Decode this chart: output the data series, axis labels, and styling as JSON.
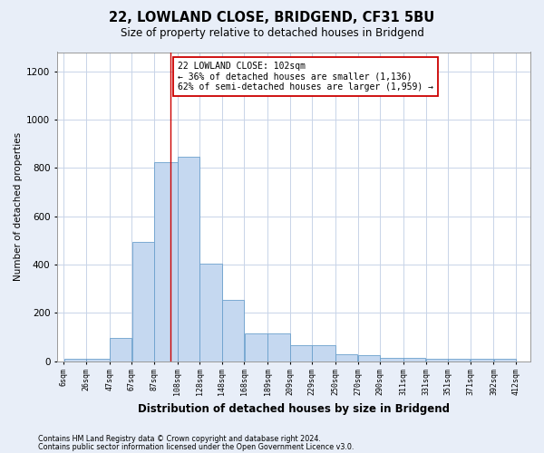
{
  "title1": "22, LOWLAND CLOSE, BRIDGEND, CF31 5BU",
  "title2": "Size of property relative to detached houses in Bridgend",
  "xlabel": "Distribution of detached houses by size in Bridgend",
  "ylabel": "Number of detached properties",
  "bar_left_edges": [
    6,
    26,
    47,
    67,
    87,
    108,
    128,
    148,
    168,
    189,
    209,
    229,
    250,
    270,
    290,
    311,
    331,
    351,
    371,
    392
  ],
  "bar_widths": [
    20,
    21,
    20,
    20,
    21,
    20,
    20,
    20,
    21,
    20,
    20,
    21,
    20,
    20,
    21,
    20,
    20,
    20,
    21,
    20
  ],
  "bar_heights": [
    10,
    10,
    95,
    495,
    825,
    845,
    405,
    255,
    115,
    115,
    65,
    65,
    30,
    25,
    15,
    15,
    10,
    10,
    10,
    10
  ],
  "bar_color": "#c5d8f0",
  "bar_edge_color": "#6ba0cc",
  "vline_x": 102,
  "vline_color": "#cc0000",
  "annotation_line1": "22 LOWLAND CLOSE: 102sqm",
  "annotation_line2": "← 36% of detached houses are smaller (1,136)",
  "annotation_line3": "62% of semi-detached houses are larger (1,959) →",
  "annotation_box_color": "#ffffff",
  "annotation_border_color": "#cc0000",
  "ylim": [
    0,
    1280
  ],
  "xlim": [
    0,
    425
  ],
  "tick_labels": [
    "6sqm",
    "26sqm",
    "47sqm",
    "67sqm",
    "87sqm",
    "108sqm",
    "128sqm",
    "148sqm",
    "168sqm",
    "189sqm",
    "209sqm",
    "229sqm",
    "250sqm",
    "270sqm",
    "290sqm",
    "311sqm",
    "331sqm",
    "351sqm",
    "371sqm",
    "392sqm",
    "412sqm"
  ],
  "tick_positions": [
    6,
    26,
    47,
    67,
    87,
    108,
    128,
    148,
    168,
    189,
    209,
    229,
    250,
    270,
    290,
    311,
    331,
    351,
    371,
    392,
    412
  ],
  "footer1": "Contains HM Land Registry data © Crown copyright and database right 2024.",
  "footer2": "Contains public sector information licensed under the Open Government Licence v3.0.",
  "bg_color": "#e8eef8",
  "plot_bg_color": "#ffffff",
  "grid_color": "#c8d4e8"
}
